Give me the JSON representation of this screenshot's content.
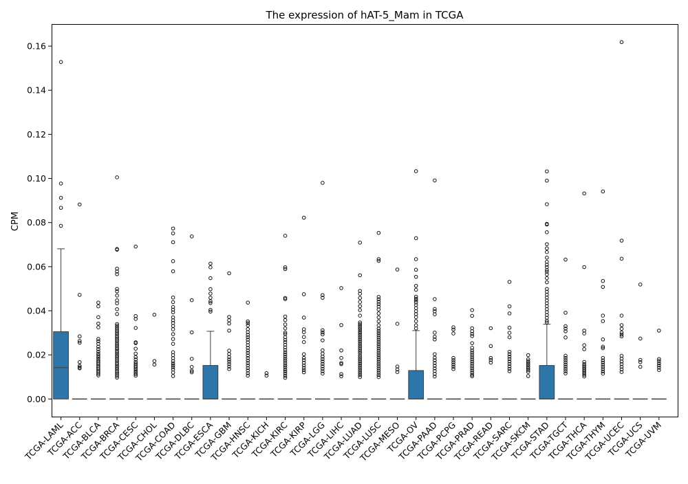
{
  "chart_data": {
    "type": "box",
    "title": "The expression of hAT-5_Mam in TCGA",
    "xlabel": "",
    "ylabel": "CPM",
    "ylim": [
      -0.008,
      0.17
    ],
    "yticks": [
      0.0,
      0.02,
      0.04,
      0.06,
      0.08,
      0.1,
      0.12,
      0.14,
      0.16
    ],
    "ytick_labels": [
      "0.00",
      "0.02",
      "0.04",
      "0.06",
      "0.08",
      "0.10",
      "0.12",
      "0.14",
      "0.16"
    ],
    "grid": false,
    "box_color": "#2e75aa",
    "categories": [
      "TCGA-LAML",
      "TCGA-ACC",
      "TCGA-BLCA",
      "TCGA-BRCA",
      "TCGA-CESC",
      "TCGA-CHOL",
      "TCGA-COAD",
      "TCGA-DLBC",
      "TCGA-ESCA",
      "TCGA-GBM",
      "TCGA-HNSC",
      "TCGA-KICH",
      "TCGA-KIRC",
      "TCGA-KIRP",
      "TCGA-LGG",
      "TCGA-LIHC",
      "TCGA-LUAD",
      "TCGA-LUSC",
      "TCGA-MESO",
      "TCGA-OV",
      "TCGA-PAAD",
      "TCGA-PCPG",
      "TCGA-PRAD",
      "TCGA-READ",
      "TCGA-SARC",
      "TCGA-SKCM",
      "TCGA-STAD",
      "TCGA-TGCT",
      "TCGA-THCA",
      "TCGA-THYM",
      "TCGA-UCEC",
      "TCGA-UCS",
      "TCGA-UVM"
    ],
    "boxes": [
      {
        "q1": 0,
        "median": 0.0142,
        "q3": 0.0305,
        "whislo": 0,
        "whishi": 0.0681,
        "fliers": [
          0.1528,
          0.0977,
          0.0912,
          0.0867,
          0.0785
        ]
      },
      {
        "q1": 0,
        "median": 0,
        "q3": 0,
        "whislo": 0,
        "whishi": 0,
        "fliers": [
          0.0882,
          0.0472,
          0.0284,
          0.0263,
          0.0255,
          0.0167,
          0.015,
          0.0143,
          0.0139
        ]
      },
      {
        "q1": 0,
        "median": 0,
        "q3": 0,
        "whislo": 0,
        "whishi": 0,
        "fliers": [
          0.0437,
          0.042,
          0.0371,
          0.0342,
          0.0325,
          0.0272,
          0.0262,
          0.025,
          0.0237,
          0.0226,
          0.0215,
          0.0205,
          0.0197,
          0.0189,
          0.018,
          0.0172,
          0.0165,
          0.0158,
          0.015,
          0.0143,
          0.0136,
          0.0128,
          0.0121,
          0.0114,
          0.0107
        ]
      },
      {
        "q1": 0,
        "median": 0,
        "q3": 0,
        "whislo": 0,
        "whishi": 0,
        "fliers": [
          0.1005,
          0.068,
          0.0677,
          0.0591,
          0.0578,
          0.0566,
          0.0499,
          0.0488,
          0.0469,
          0.0447,
          0.0434,
          0.0407,
          0.0385,
          0.034,
          0.0332,
          0.0324,
          0.0316,
          0.0309,
          0.0301,
          0.0294,
          0.0286,
          0.0279,
          0.0271,
          0.0264,
          0.0256,
          0.0248,
          0.0241,
          0.0233,
          0.0226,
          0.0218,
          0.0211,
          0.0203,
          0.0195,
          0.0188,
          0.018,
          0.0173,
          0.0165,
          0.0158,
          0.015,
          0.0142,
          0.0135,
          0.0127,
          0.012,
          0.0112,
          0.0105,
          0.0097
        ]
      },
      {
        "q1": 0,
        "median": 0,
        "q3": 0,
        "whislo": 0,
        "whishi": 0,
        "fliers": [
          0.0691,
          0.0376,
          0.0363,
          0.0322,
          0.0257,
          0.0253,
          0.0228,
          0.0206,
          0.019,
          0.0179,
          0.0168,
          0.016,
          0.0152,
          0.0145,
          0.0137,
          0.0129,
          0.0121,
          0.0113,
          0.0106
        ]
      },
      {
        "q1": 0,
        "median": 0,
        "q3": 0,
        "whislo": 0,
        "whishi": 0,
        "fliers": [
          0.0382,
          0.0172,
          0.0156
        ]
      },
      {
        "q1": 0,
        "median": 0,
        "q3": 0,
        "whislo": 0,
        "whishi": 0,
        "fliers": [
          0.0773,
          0.0751,
          0.0711,
          0.0625,
          0.0579,
          0.046,
          0.0439,
          0.0417,
          0.0405,
          0.0393,
          0.037,
          0.0357,
          0.0345,
          0.0331,
          0.0316,
          0.0294,
          0.0272,
          0.025,
          0.0212,
          0.0199,
          0.0185,
          0.0172,
          0.0162,
          0.0153,
          0.0144,
          0.0134,
          0.012,
          0.0104
        ]
      },
      {
        "q1": 0,
        "median": 0,
        "q3": 0,
        "whislo": 0,
        "whishi": 0,
        "fliers": [
          0.0737,
          0.0448,
          0.0302,
          0.0182,
          0.0145,
          0.0128,
          0.0121
        ]
      },
      {
        "q1": 0,
        "median": 0,
        "q3": 0.0152,
        "whislo": 0,
        "whishi": 0.0307,
        "fliers": [
          0.0614,
          0.0597,
          0.0548,
          0.0498,
          0.0478,
          0.0459,
          0.0443,
          0.0435,
          0.0404,
          0.0396
        ]
      },
      {
        "q1": 0,
        "median": 0,
        "q3": 0,
        "whislo": 0,
        "whishi": 0,
        "fliers": [
          0.057,
          0.0372,
          0.0357,
          0.0342,
          0.031,
          0.0219,
          0.0204,
          0.019,
          0.0179,
          0.0169,
          0.0158,
          0.0147,
          0.0136
        ]
      },
      {
        "q1": 0,
        "median": 0,
        "q3": 0,
        "whislo": 0,
        "whishi": 0,
        "fliers": [
          0.0437,
          0.0352,
          0.0344,
          0.0334,
          0.0317,
          0.0303,
          0.0291,
          0.028,
          0.0269,
          0.0257,
          0.0244,
          0.0232,
          0.022,
          0.0209,
          0.0197,
          0.0186,
          0.0174,
          0.0163,
          0.0152,
          0.014,
          0.0129,
          0.0117,
          0.0106
        ]
      },
      {
        "q1": 0,
        "median": 0,
        "q3": 0,
        "whislo": 0,
        "whishi": 0,
        "fliers": [
          0.0117,
          0.0106
        ]
      },
      {
        "q1": 0,
        "median": 0,
        "q3": 0,
        "whislo": 0,
        "whishi": 0,
        "fliers": [
          0.074,
          0.0597,
          0.0589,
          0.0458,
          0.0453,
          0.0374,
          0.0358,
          0.0338,
          0.032,
          0.0301,
          0.0294,
          0.028,
          0.0268,
          0.0258,
          0.0246,
          0.0234,
          0.0222,
          0.0212,
          0.0202,
          0.0192,
          0.0182,
          0.0173,
          0.0163,
          0.0153,
          0.0144,
          0.0134,
          0.0125,
          0.0115,
          0.0105,
          0.0096
        ]
      },
      {
        "q1": 0,
        "median": 0,
        "q3": 0,
        "whislo": 0,
        "whishi": 0,
        "fliers": [
          0.0822,
          0.0475,
          0.0369,
          0.0316,
          0.0303,
          0.0281,
          0.0258,
          0.0203,
          0.0186,
          0.0176,
          0.0164,
          0.0152,
          0.0141,
          0.0131,
          0.0121
        ]
      },
      {
        "q1": 0,
        "median": 0,
        "q3": 0,
        "whislo": 0,
        "whishi": 0,
        "fliers": [
          0.098,
          0.0471,
          0.0459,
          0.0312,
          0.0302,
          0.0293,
          0.0266,
          0.0221,
          0.0206,
          0.0192,
          0.0181,
          0.017,
          0.0159,
          0.0148,
          0.0137,
          0.0126,
          0.0115
        ]
      },
      {
        "q1": 0,
        "median": 0,
        "q3": 0,
        "whislo": 0,
        "whishi": 0,
        "fliers": [
          0.0503,
          0.0335,
          0.022,
          0.0186,
          0.0163,
          0.0158,
          0.0113,
          0.0103
        ]
      },
      {
        "q1": 0,
        "median": 0,
        "q3": 0,
        "whislo": 0,
        "whishi": 0,
        "fliers": [
          0.0709,
          0.0561,
          0.049,
          0.0477,
          0.0458,
          0.044,
          0.0421,
          0.0403,
          0.0378,
          0.0347,
          0.0339,
          0.0331,
          0.0323,
          0.0315,
          0.0306,
          0.0298,
          0.0289,
          0.028,
          0.0271,
          0.0262,
          0.0253,
          0.0244,
          0.0235,
          0.0226,
          0.0217,
          0.0208,
          0.0198,
          0.0189,
          0.018,
          0.0171,
          0.0162,
          0.0153,
          0.0144,
          0.0135,
          0.0126,
          0.0117,
          0.0108,
          0.0099
        ]
      },
      {
        "q1": 0,
        "median": 0,
        "q3": 0,
        "whislo": 0,
        "whishi": 0,
        "fliers": [
          0.0753,
          0.0634,
          0.0626,
          0.0463,
          0.0452,
          0.0441,
          0.043,
          0.0419,
          0.0406,
          0.0388,
          0.037,
          0.0352,
          0.0334,
          0.0319,
          0.0309,
          0.0299,
          0.0289,
          0.0279,
          0.0269,
          0.0259,
          0.0249,
          0.0239,
          0.0229,
          0.0219,
          0.0209,
          0.0199,
          0.0189,
          0.0179,
          0.0169,
          0.0159,
          0.0149,
          0.0139,
          0.0129,
          0.0119,
          0.0109,
          0.0099
        ]
      },
      {
        "q1": 0,
        "median": 0,
        "q3": 0,
        "whislo": 0,
        "whishi": 0,
        "fliers": [
          0.0587,
          0.0341,
          0.0147,
          0.0134,
          0.0122
        ]
      },
      {
        "q1": 0,
        "median": 0,
        "q3": 0.0129,
        "whislo": 0,
        "whishi": 0.031,
        "fliers": [
          0.1033,
          0.0729,
          0.0634,
          0.0586,
          0.0554,
          0.0513,
          0.0495,
          0.0464,
          0.0455,
          0.0447,
          0.0438,
          0.0426,
          0.0412,
          0.0398,
          0.0385,
          0.0371,
          0.0353,
          0.0334,
          0.032
        ]
      },
      {
        "q1": 0,
        "median": 0,
        "q3": 0,
        "whislo": 0,
        "whishi": 0,
        "fliers": [
          0.0991,
          0.0453,
          0.0408,
          0.0398,
          0.0384,
          0.0301,
          0.0282,
          0.027,
          0.0203,
          0.0187,
          0.0175,
          0.0163,
          0.0151,
          0.0139,
          0.0127,
          0.0114,
          0.0102
        ]
      },
      {
        "q1": 0,
        "median": 0,
        "q3": 0,
        "whislo": 0,
        "whishi": 0,
        "fliers": [
          0.0325,
          0.0315,
          0.0297,
          0.0186,
          0.0176,
          0.0166,
          0.0156,
          0.0146,
          0.0136
        ]
      },
      {
        "q1": 0,
        "median": 0,
        "q3": 0,
        "whislo": 0,
        "whishi": 0,
        "fliers": [
          0.0403,
          0.0377,
          0.0321,
          0.0307,
          0.0295,
          0.0285,
          0.0253,
          0.0232,
          0.022,
          0.021,
          0.02,
          0.019,
          0.018,
          0.017,
          0.016,
          0.015,
          0.014,
          0.013,
          0.012,
          0.011,
          0.0103
        ]
      },
      {
        "q1": 0,
        "median": 0,
        "q3": 0,
        "whislo": 0,
        "whishi": 0,
        "fliers": [
          0.0321,
          0.024,
          0.0186,
          0.0177,
          0.0165
        ]
      },
      {
        "q1": 0,
        "median": 0,
        "q3": 0,
        "whislo": 0,
        "whishi": 0,
        "fliers": [
          0.0531,
          0.042,
          0.0388,
          0.0323,
          0.03,
          0.028,
          0.0214,
          0.0203,
          0.0192,
          0.0181,
          0.017,
          0.0159,
          0.0148,
          0.0137,
          0.0126
        ]
      },
      {
        "q1": 0,
        "median": 0,
        "q3": 0,
        "whislo": 0,
        "whishi": 0,
        "fliers": [
          0.0199,
          0.018,
          0.0171,
          0.0163,
          0.0155,
          0.0147,
          0.0139,
          0.0131,
          0.0123,
          0.0104
        ]
      },
      {
        "q1": 0,
        "median": 0,
        "q3": 0.0152,
        "whislo": 0,
        "whishi": 0.0339,
        "fliers": [
          0.1032,
          0.099,
          0.0883,
          0.0794,
          0.0791,
          0.0756,
          0.0702,
          0.0683,
          0.0666,
          0.0641,
          0.0622,
          0.0609,
          0.0598,
          0.0585,
          0.0577,
          0.0565,
          0.0548,
          0.0529,
          0.0499,
          0.0486,
          0.0473,
          0.046,
          0.0447,
          0.0434,
          0.0421,
          0.0407,
          0.0394,
          0.0381,
          0.0368,
          0.0355,
          0.0347
        ]
      },
      {
        "q1": 0,
        "median": 0,
        "q3": 0,
        "whislo": 0,
        "whishi": 0,
        "fliers": [
          0.0632,
          0.0391,
          0.033,
          0.0319,
          0.0307,
          0.0279,
          0.0196,
          0.0186,
          0.0176,
          0.0166,
          0.0156,
          0.0146,
          0.0136,
          0.0126,
          0.0116
        ]
      },
      {
        "q1": 0,
        "median": 0,
        "q3": 0,
        "whislo": 0,
        "whishi": 0,
        "fliers": [
          0.0932,
          0.0598,
          0.031,
          0.0297,
          0.0244,
          0.0226,
          0.0168,
          0.0158,
          0.015,
          0.0142,
          0.0134,
          0.0126,
          0.0118,
          0.011,
          0.0102
        ]
      },
      {
        "q1": 0,
        "median": 0,
        "q3": 0,
        "whislo": 0,
        "whishi": 0,
        "fliers": [
          0.0941,
          0.0535,
          0.0508,
          0.0378,
          0.0353,
          0.027,
          0.0237,
          0.023,
          0.0186,
          0.0175,
          0.0165,
          0.0155,
          0.0145,
          0.0135,
          0.0125,
          0.0115
        ]
      },
      {
        "q1": 0,
        "median": 0,
        "q3": 0,
        "whislo": 0,
        "whishi": 0,
        "fliers": [
          0.1618,
          0.0718,
          0.0636,
          0.0378,
          0.0335,
          0.0318,
          0.0301,
          0.0292,
          0.0284,
          0.0196,
          0.0183,
          0.017,
          0.0158,
          0.0146,
          0.0134,
          0.0122
        ]
      },
      {
        "q1": 0,
        "median": 0,
        "q3": 0,
        "whislo": 0,
        "whishi": 0,
        "fliers": [
          0.0519,
          0.0274,
          0.0177,
          0.0167,
          0.0146
        ]
      },
      {
        "q1": 0,
        "median": 0,
        "q3": 0,
        "whislo": 0,
        "whishi": 0,
        "fliers": [
          0.031,
          0.0181,
          0.0172,
          0.0162,
          0.0152,
          0.0142,
          0.0131
        ]
      }
    ]
  }
}
